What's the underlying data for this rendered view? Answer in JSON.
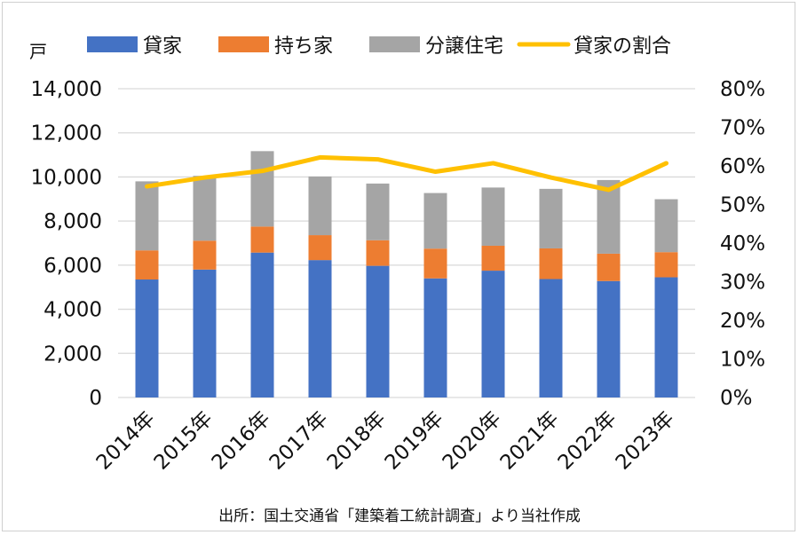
{
  "chart_data": {
    "type": "bar",
    "stacked": true,
    "categories": [
      "2014年",
      "2015年",
      "2016年",
      "2017年",
      "2018年",
      "2019年",
      "2020年",
      "2021年",
      "2022年",
      "2023年"
    ],
    "series": [
      {
        "name": "貸家",
        "type": "bar",
        "axis": "left",
        "color": "#4472C4",
        "values": [
          5350,
          5800,
          6570,
          6230,
          5970,
          5400,
          5750,
          5370,
          5280,
          5450
        ]
      },
      {
        "name": "持ち家",
        "type": "bar",
        "axis": "left",
        "color": "#ED7D31",
        "values": [
          1320,
          1310,
          1180,
          1130,
          1160,
          1350,
          1130,
          1390,
          1240,
          1140
        ]
      },
      {
        "name": "分譲住宅",
        "type": "bar",
        "axis": "left",
        "color": "#A5A5A5",
        "values": [
          3130,
          2940,
          3420,
          2660,
          2570,
          2520,
          2640,
          2700,
          3340,
          2400
        ]
      },
      {
        "name": "貸家の割合",
        "type": "line",
        "axis": "right",
        "color": "#FFC000",
        "values": [
          0.547,
          0.57,
          0.587,
          0.622,
          0.617,
          0.585,
          0.607,
          0.57,
          0.538,
          0.607
        ]
      }
    ],
    "ylabel": "戸",
    "ylim": [
      0,
      14000
    ],
    "y_ticks": [
      "0",
      "2,000",
      "4,000",
      "6,000",
      "8,000",
      "10,000",
      "12,000",
      "14,000"
    ],
    "y2lim": [
      0,
      0.8
    ],
    "y2_ticks": [
      "0%",
      "10%",
      "20%",
      "30%",
      "40%",
      "50%",
      "60%",
      "70%",
      "80%"
    ],
    "grid": true,
    "legend_position": "top",
    "source": "出所：国土交通省「建築着工統計調査」より当社作成"
  }
}
